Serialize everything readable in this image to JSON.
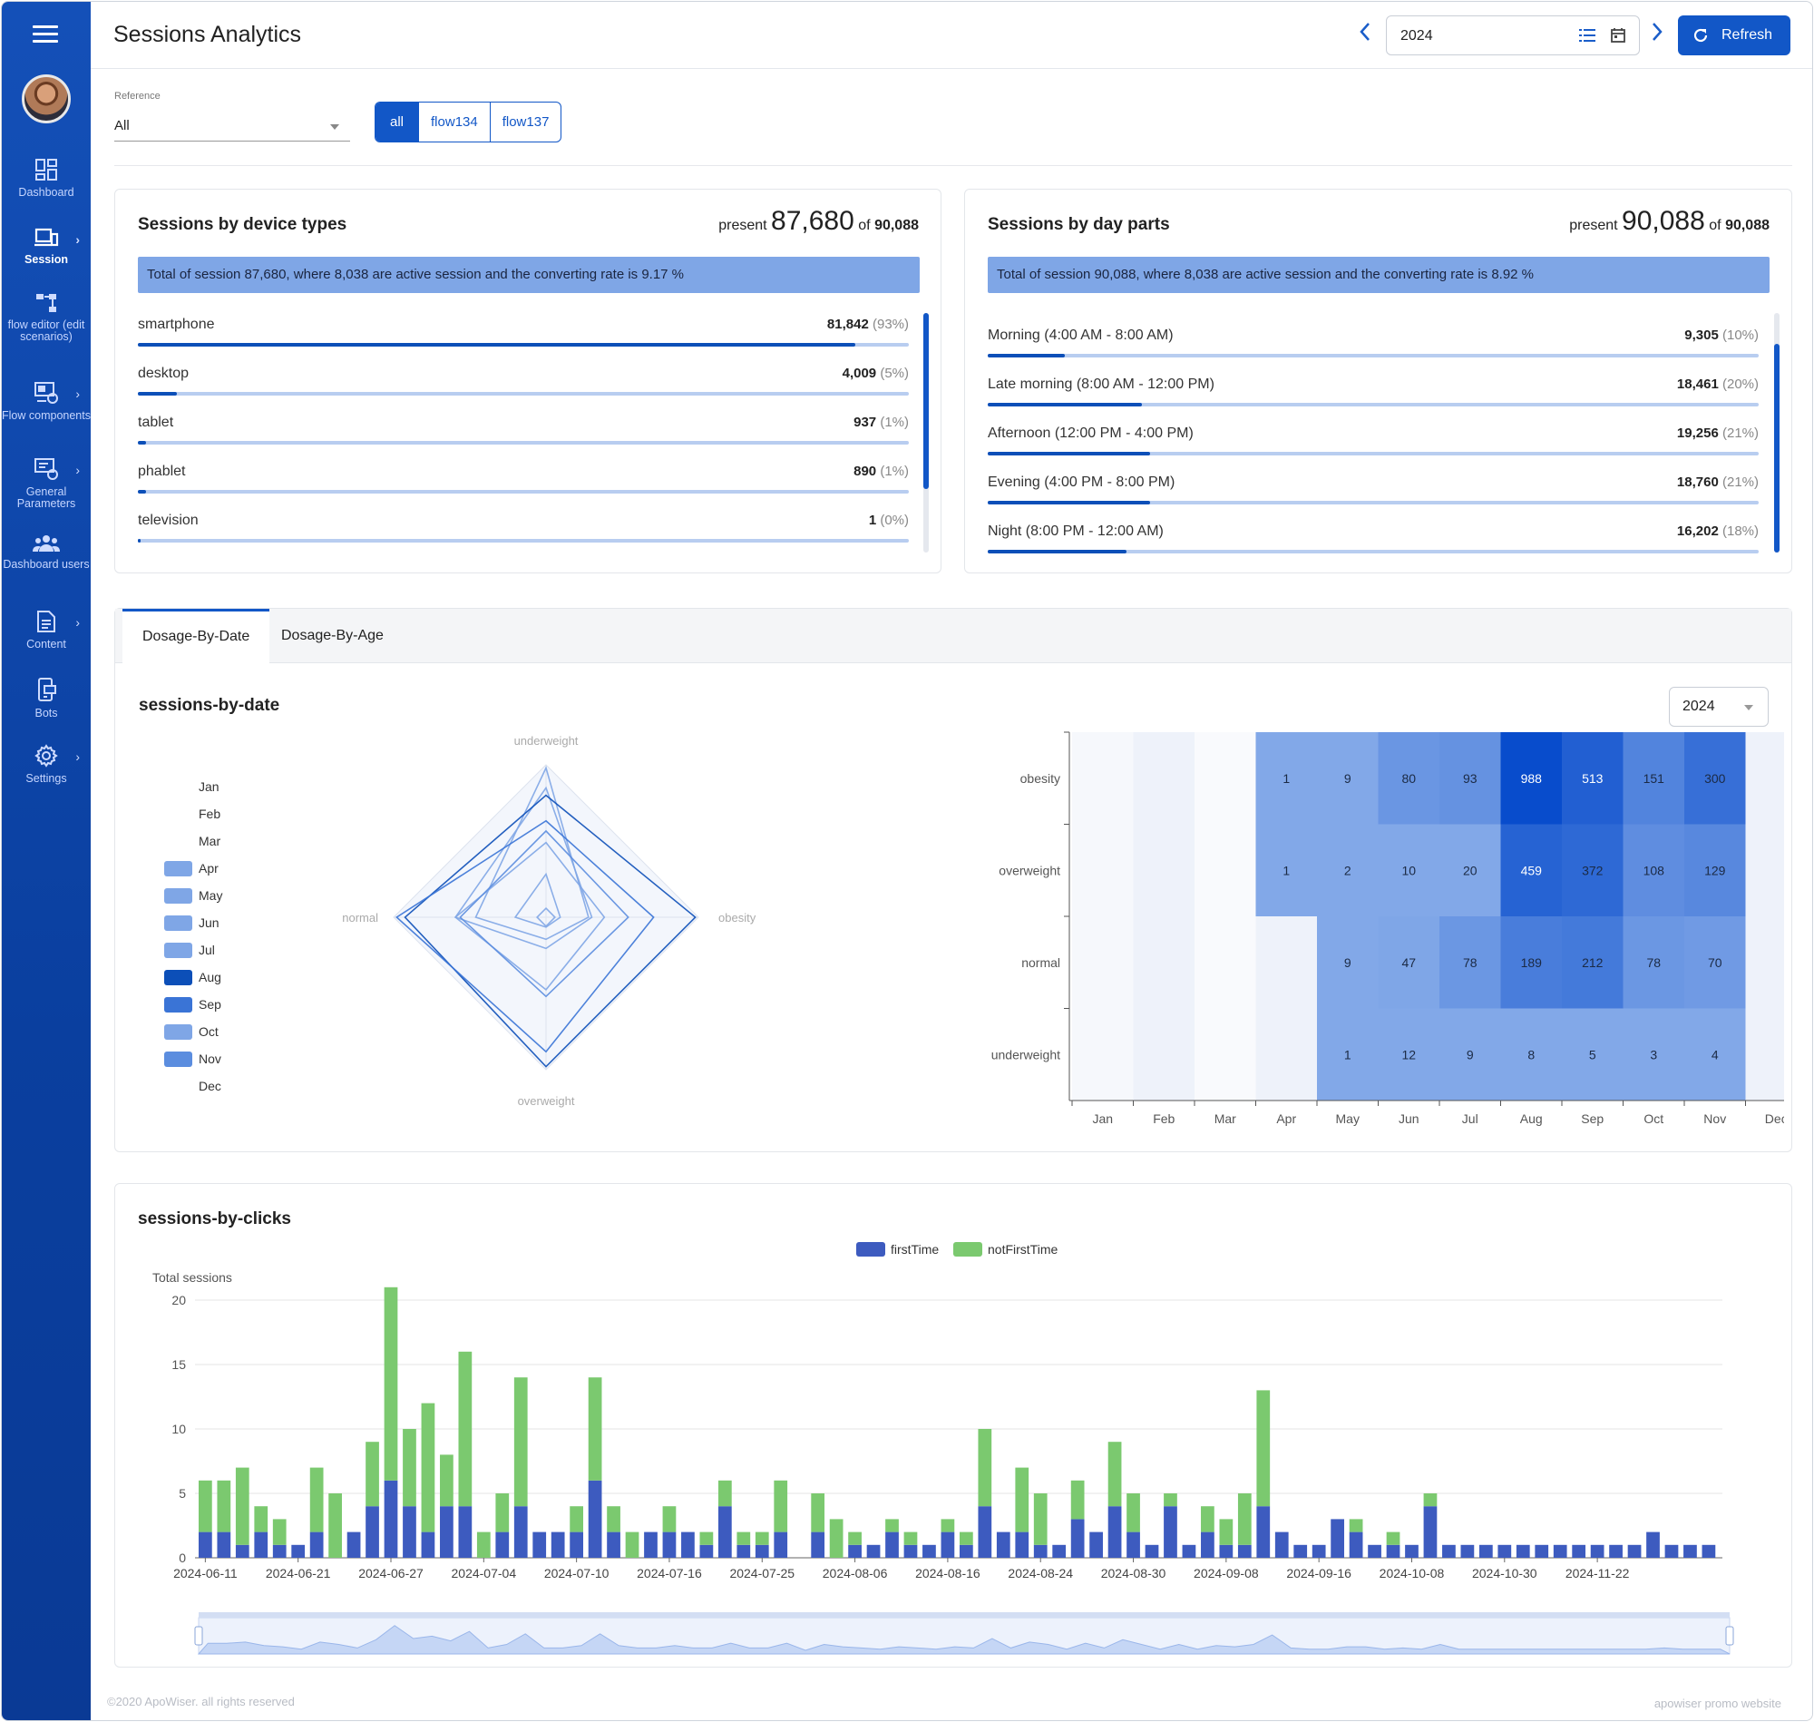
{
  "header": {
    "title": "Sessions Analytics",
    "year_value": "2024",
    "refresh_label": "Refresh"
  },
  "sidebar": {
    "items": [
      {
        "label": "Dashboard",
        "icon": "dashboard-icon"
      },
      {
        "label": "Session",
        "icon": "session-icon"
      },
      {
        "label": "flow editor (edit scenarios)",
        "icon": "flow-editor-icon"
      },
      {
        "label": "Flow components",
        "icon": "flow-components-icon"
      },
      {
        "label": "General Parameters",
        "icon": "general-parameters-icon"
      },
      {
        "label": "Dashboard users",
        "icon": "users-icon"
      },
      {
        "label": "Content",
        "icon": "content-icon"
      },
      {
        "label": "Bots",
        "icon": "bots-icon"
      },
      {
        "label": "Settings",
        "icon": "settings-icon"
      }
    ]
  },
  "filters": {
    "reference_label": "Reference",
    "reference_value": "All",
    "segments": [
      "all",
      "flow134",
      "flow137"
    ]
  },
  "device_card": {
    "title": "Sessions by device types",
    "present_word": "present",
    "present_value": "87,680",
    "of_word": "of",
    "total": "90,088",
    "banner": "Total of session 87,680, where 8,038 are active session and the converting rate is 9.17 %",
    "rows": [
      {
        "label": "smartphone",
        "value": "81,842",
        "pct": "(93%)",
        "fraction": 0.93
      },
      {
        "label": "desktop",
        "value": "4,009",
        "pct": "(5%)",
        "fraction": 0.05
      },
      {
        "label": "tablet",
        "value": "937",
        "pct": "(1%)",
        "fraction": 0.01
      },
      {
        "label": "phablet",
        "value": "890",
        "pct": "(1%)",
        "fraction": 0.01
      },
      {
        "label": "television",
        "value": "1",
        "pct": "(0%)",
        "fraction": 0.0
      }
    ]
  },
  "dayparts_card": {
    "title": "Sessions by day parts",
    "present_word": "present",
    "present_value": "90,088",
    "of_word": "of",
    "total": "90,088",
    "banner": "Total of session 90,088, where 8,038 are active session and the converting rate is 8.92 %",
    "rows": [
      {
        "label": "Morning (4:00 AM - 8:00 AM)",
        "value": "9,305",
        "pct": "(10%)",
        "fraction": 0.1
      },
      {
        "label": "Late morning (8:00 AM - 12:00 PM)",
        "value": "18,461",
        "pct": "(20%)",
        "fraction": 0.2
      },
      {
        "label": "Afternoon (12:00 PM - 4:00 PM)",
        "value": "19,256",
        "pct": "(21%)",
        "fraction": 0.21
      },
      {
        "label": "Evening (4:00 PM - 8:00 PM)",
        "value": "18,760",
        "pct": "(21%)",
        "fraction": 0.21
      },
      {
        "label": "Night (8:00 PM - 12:00 AM)",
        "value": "16,202",
        "pct": "(18%)",
        "fraction": 0.18
      }
    ]
  },
  "tabs": [
    "Dosage-By-Date",
    "Dosage-By-Age"
  ],
  "sessions_by_date": {
    "title": "sessions-by-date",
    "year_select": "2024"
  },
  "sessions_by_clicks": {
    "title": "sessions-by-clicks"
  },
  "footer": {
    "left": "©2020 ApoWiser. all rights reserved",
    "right": "apowiser promo website"
  },
  "colors": {
    "accent": "#1257c7",
    "sidebar": "#0b44a8",
    "first_time": "#3d5bbf",
    "not_first_time": "#7bc96f"
  },
  "chart_data": [
    {
      "type": "radar",
      "indicators": [
        "underweight",
        "obesity",
        "overweight",
        "normal"
      ],
      "legend": [
        "Jan",
        "Feb",
        "Mar",
        "Apr",
        "May",
        "Jun",
        "Jul",
        "Aug",
        "Sep",
        "Oct",
        "Nov",
        "Dec"
      ],
      "series": [
        {
          "name": "Apr",
          "values": [
            0,
            1,
            1,
            0
          ]
        },
        {
          "name": "May",
          "values": [
            1,
            9,
            2,
            9
          ]
        },
        {
          "name": "Jun",
          "values": [
            12,
            80,
            10,
            47
          ]
        },
        {
          "name": "Jul",
          "values": [
            9,
            93,
            20,
            78
          ]
        },
        {
          "name": "Aug",
          "values": [
            8,
            988,
            459,
            189
          ]
        },
        {
          "name": "Sep",
          "values": [
            5,
            513,
            372,
            212
          ]
        },
        {
          "name": "Oct",
          "values": [
            3,
            151,
            108,
            78
          ]
        },
        {
          "name": "Nov",
          "values": [
            4,
            300,
            129,
            70
          ]
        }
      ]
    },
    {
      "type": "heatmap",
      "x": [
        "Jan",
        "Feb",
        "Mar",
        "Apr",
        "May",
        "Jun",
        "Jul",
        "Aug",
        "Sep",
        "Oct",
        "Nov",
        "Dec"
      ],
      "y": [
        "obesity",
        "overweight",
        "normal",
        "underweight"
      ],
      "values": [
        [
          null,
          null,
          null,
          1,
          9,
          80,
          93,
          988,
          513,
          151,
          300,
          null
        ],
        [
          null,
          null,
          null,
          1,
          2,
          10,
          20,
          459,
          372,
          108,
          129,
          null
        ],
        [
          null,
          null,
          null,
          null,
          9,
          47,
          78,
          189,
          212,
          78,
          70,
          null
        ],
        [
          null,
          null,
          null,
          null,
          1,
          12,
          9,
          8,
          5,
          3,
          4,
          null
        ]
      ]
    },
    {
      "type": "bar",
      "stacked": true,
      "ylabel": "Total sessions",
      "ylim": [
        0,
        20
      ],
      "yticks": [
        0,
        5,
        10,
        15,
        20
      ],
      "legend": [
        "firstTime",
        "notFirstTime"
      ],
      "tick_labels": [
        "2024-06-11",
        "2024-06-21",
        "2024-06-27",
        "2024-07-04",
        "2024-07-10",
        "2024-07-16",
        "2024-07-25",
        "2024-08-06",
        "2024-08-16",
        "2024-08-24",
        "2024-08-30",
        "2024-09-08",
        "2024-09-16",
        "2024-10-08",
        "2024-10-30",
        "2024-11-22"
      ],
      "series": [
        {
          "name": "firstTime",
          "values": [
            2,
            2,
            1,
            2,
            1,
            1,
            2,
            0,
            2,
            4,
            6,
            4,
            2,
            4,
            4,
            0,
            2,
            4,
            2,
            2,
            2,
            6,
            2,
            0,
            2,
            2,
            2,
            1,
            4,
            1,
            1,
            2,
            0,
            2,
            0,
            1,
            1,
            2,
            1,
            1,
            2,
            1,
            4,
            2,
            2,
            1,
            1,
            3,
            2,
            4,
            2,
            1,
            4,
            1,
            2,
            1,
            1,
            4,
            2,
            1,
            1,
            3,
            2,
            1,
            1,
            1,
            4,
            1,
            1,
            1,
            1,
            1,
            1,
            1,
            1,
            1,
            1,
            1,
            2,
            1,
            1,
            1
          ]
        },
        {
          "name": "notFirstTime",
          "values": [
            4,
            4,
            6,
            2,
            2,
            0,
            5,
            5,
            0,
            5,
            15,
            6,
            10,
            4,
            12,
            2,
            3,
            10,
            0,
            0,
            2,
            8,
            2,
            2,
            0,
            2,
            0,
            1,
            2,
            1,
            1,
            4,
            0,
            3,
            3,
            1,
            0,
            1,
            1,
            0,
            1,
            1,
            6,
            0,
            5,
            4,
            0,
            3,
            0,
            5,
            3,
            0,
            1,
            0,
            2,
            2,
            4,
            9,
            0,
            0,
            0,
            0,
            1,
            0,
            1,
            0,
            1,
            0,
            0,
            0,
            0,
            0,
            0,
            0,
            0,
            0,
            0,
            0,
            0,
            0,
            0,
            0
          ]
        }
      ]
    }
  ]
}
